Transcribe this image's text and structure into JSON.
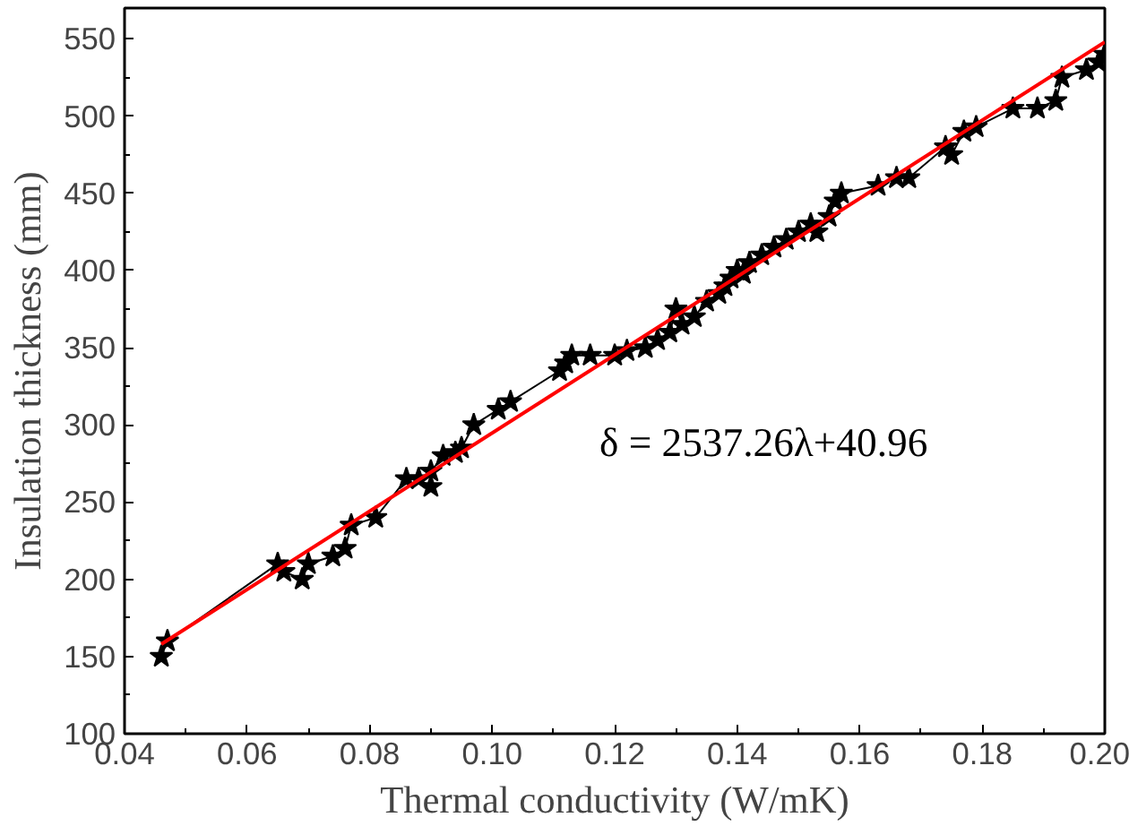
{
  "chart_data": {
    "type": "line",
    "xlabel": "Thermal conductivity (W/mK)",
    "ylabel": "Insulation thickness (mm)",
    "annotations": [
      "δ = 2537.26λ+40.96"
    ],
    "xlim": [
      0.04,
      0.2
    ],
    "ylim": [
      100,
      570
    ],
    "xticks": [
      {
        "value": 0.04,
        "label": "0.04"
      },
      {
        "value": 0.06,
        "label": "0.06"
      },
      {
        "value": 0.08,
        "label": "0.08"
      },
      {
        "value": 0.1,
        "label": "0.10"
      },
      {
        "value": 0.12,
        "label": "0.12"
      },
      {
        "value": 0.14,
        "label": "0.14"
      },
      {
        "value": 0.16,
        "label": "0.16"
      },
      {
        "value": 0.18,
        "label": "0.18"
      },
      {
        "value": 0.2,
        "label": "0.20"
      }
    ],
    "yticks": [
      100,
      150,
      200,
      250,
      300,
      350,
      400,
      450,
      500,
      550
    ],
    "grid": false,
    "series": [
      {
        "color": "#000000",
        "marker": "star",
        "line_style": "solid",
        "x": [
          0.046,
          0.047,
          0.065,
          0.066,
          0.069,
          0.07,
          0.074,
          0.076,
          0.077,
          0.081,
          0.086,
          0.088,
          0.09,
          0.09,
          0.092,
          0.094,
          0.095,
          0.097,
          0.101,
          0.103,
          0.111,
          0.112,
          0.113,
          0.116,
          0.12,
          0.122,
          0.125,
          0.127,
          0.129,
          0.13,
          0.131,
          0.133,
          0.135,
          0.137,
          0.138,
          0.139,
          0.14,
          0.141,
          0.142,
          0.144,
          0.146,
          0.148,
          0.15,
          0.152,
          0.153,
          0.155,
          0.156,
          0.157,
          0.163,
          0.166,
          0.168,
          0.174,
          0.175,
          0.177,
          0.179,
          0.185,
          0.189,
          0.192,
          0.193,
          0.197,
          0.199,
          0.2
        ],
        "values": [
          150,
          160,
          210,
          205,
          200,
          210,
          215,
          220,
          235,
          240,
          265,
          265,
          260,
          270,
          280,
          282,
          285,
          300,
          310,
          315,
          335,
          340,
          345,
          345,
          345,
          348,
          350,
          355,
          360,
          375,
          365,
          370,
          380,
          385,
          390,
          395,
          400,
          398,
          405,
          410,
          415,
          420,
          425,
          430,
          425,
          435,
          445,
          450,
          455,
          460,
          460,
          480,
          475,
          490,
          493,
          505,
          505,
          510,
          525,
          530,
          535,
          540
        ]
      },
      {
        "color": "#ff0000",
        "marker": "none",
        "line_style": "solid",
        "x": [
          0.046,
          0.2
        ],
        "values": [
          158,
          548
        ]
      }
    ]
  }
}
